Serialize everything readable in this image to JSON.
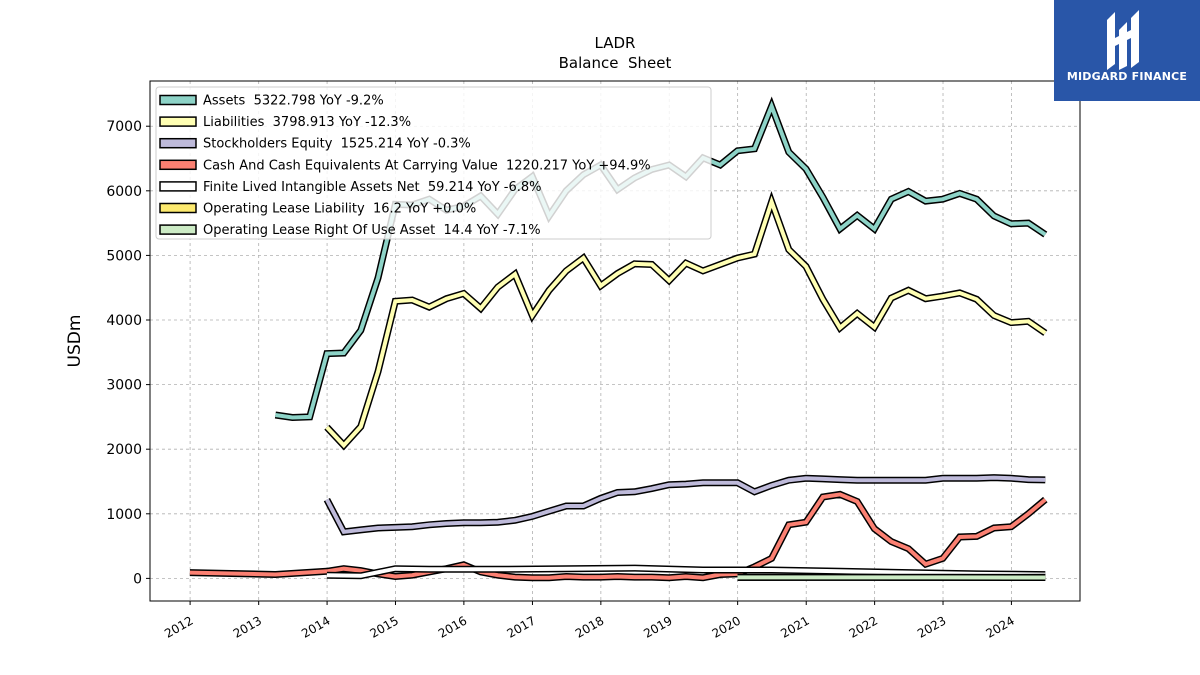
{
  "brand": {
    "name": "MIDGARD FINANCE",
    "color": "#2956a8",
    "icon": "midgard-logo-icon"
  },
  "chart_data": {
    "type": "line",
    "title": "LADR",
    "subtitle": "Balance  Sheet",
    "xlabel": "",
    "ylabel": "USDm",
    "xlim": [
      "2011-06",
      "2025-01"
    ],
    "ylim": [
      -350,
      7700
    ],
    "grid": true,
    "legend_position": "top-left",
    "x_ticks": [
      "2012",
      "2013",
      "2014",
      "2015",
      "2016",
      "2017",
      "2018",
      "2019",
      "2020",
      "2021",
      "2022",
      "2023",
      "2024"
    ],
    "y_ticks": [
      0,
      1000,
      2000,
      3000,
      4000,
      5000,
      6000,
      7000
    ],
    "series": [
      {
        "name": "Assets",
        "legend": "Assets  5322.798 YoY -9.2%",
        "color": "#8dd3c7",
        "points": [
          [
            "2013-03-31",
            2530
          ],
          [
            "2013-06-30",
            2490
          ],
          [
            "2013-09-30",
            2500
          ],
          [
            "2013-12-31",
            3480
          ],
          [
            "2014-03-31",
            3490
          ],
          [
            "2014-06-30",
            3840
          ],
          [
            "2014-09-30",
            4650
          ],
          [
            "2014-12-31",
            5790
          ],
          [
            "2015-03-31",
            5780
          ],
          [
            "2015-06-30",
            5870
          ],
          [
            "2015-09-30",
            5700
          ],
          [
            "2015-12-31",
            5760
          ],
          [
            "2016-03-31",
            5920
          ],
          [
            "2016-06-30",
            5640
          ],
          [
            "2016-09-30",
            6020
          ],
          [
            "2016-12-31",
            6220
          ],
          [
            "2017-03-31",
            5610
          ],
          [
            "2017-06-30",
            6000
          ],
          [
            "2017-09-30",
            6250
          ],
          [
            "2017-12-31",
            6400
          ],
          [
            "2018-03-31",
            6020
          ],
          [
            "2018-06-30",
            6200
          ],
          [
            "2018-09-30",
            6330
          ],
          [
            "2018-12-31",
            6400
          ],
          [
            "2019-03-31",
            6220
          ],
          [
            "2019-06-30",
            6510
          ],
          [
            "2019-09-30",
            6400
          ],
          [
            "2019-12-31",
            6620
          ],
          [
            "2020-03-31",
            6650
          ],
          [
            "2020-06-30",
            7310
          ],
          [
            "2020-09-30",
            6600
          ],
          [
            "2020-12-31",
            6340
          ],
          [
            "2021-03-31",
            5900
          ],
          [
            "2021-06-30",
            5410
          ],
          [
            "2021-09-30",
            5620
          ],
          [
            "2021-12-31",
            5410
          ],
          [
            "2022-03-31",
            5870
          ],
          [
            "2022-06-30",
            5990
          ],
          [
            "2022-09-30",
            5840
          ],
          [
            "2022-12-31",
            5870
          ],
          [
            "2023-03-31",
            5960
          ],
          [
            "2023-06-30",
            5870
          ],
          [
            "2023-09-30",
            5610
          ],
          [
            "2023-12-31",
            5490
          ],
          [
            "2024-03-31",
            5500
          ],
          [
            "2024-06-30",
            5323
          ]
        ]
      },
      {
        "name": "Liabilities",
        "legend": "Liabilities  3798.913 YoY -12.3%",
        "color": "#ffffb3",
        "points": [
          [
            "2013-12-31",
            2340
          ],
          [
            "2014-03-31",
            2060
          ],
          [
            "2014-06-30",
            2350
          ],
          [
            "2014-09-30",
            3200
          ],
          [
            "2014-12-31",
            4290
          ],
          [
            "2015-03-31",
            4310
          ],
          [
            "2015-06-30",
            4200
          ],
          [
            "2015-09-30",
            4330
          ],
          [
            "2015-12-31",
            4410
          ],
          [
            "2016-03-31",
            4180
          ],
          [
            "2016-06-30",
            4510
          ],
          [
            "2016-09-30",
            4710
          ],
          [
            "2016-12-31",
            4070
          ],
          [
            "2017-03-31",
            4460
          ],
          [
            "2017-06-30",
            4760
          ],
          [
            "2017-09-30",
            4960
          ],
          [
            "2017-12-31",
            4530
          ],
          [
            "2018-03-31",
            4720
          ],
          [
            "2018-06-30",
            4870
          ],
          [
            "2018-09-30",
            4860
          ],
          [
            "2018-12-31",
            4610
          ],
          [
            "2019-03-31",
            4880
          ],
          [
            "2019-06-30",
            4760
          ],
          [
            "2019-12-31",
            4960
          ],
          [
            "2020-03-31",
            5020
          ],
          [
            "2020-06-30",
            5830
          ],
          [
            "2020-09-30",
            5090
          ],
          [
            "2020-12-31",
            4830
          ],
          [
            "2021-03-31",
            4320
          ],
          [
            "2021-06-30",
            3880
          ],
          [
            "2021-09-30",
            4100
          ],
          [
            "2021-12-31",
            3890
          ],
          [
            "2022-03-31",
            4340
          ],
          [
            "2022-06-30",
            4460
          ],
          [
            "2022-09-30",
            4330
          ],
          [
            "2022-12-31",
            4370
          ],
          [
            "2023-03-31",
            4420
          ],
          [
            "2023-06-30",
            4320
          ],
          [
            "2023-09-30",
            4070
          ],
          [
            "2023-12-31",
            3960
          ],
          [
            "2024-03-31",
            3980
          ],
          [
            "2024-06-30",
            3799
          ]
        ]
      },
      {
        "name": "Stockholders Equity",
        "legend": "Stockholders Equity  1525.214 YoY -0.3%",
        "color": "#bebada",
        "points": [
          [
            "2013-12-31",
            1220
          ],
          [
            "2014-03-31",
            720
          ],
          [
            "2014-06-30",
            750
          ],
          [
            "2014-09-30",
            780
          ],
          [
            "2014-12-31",
            790
          ],
          [
            "2015-03-31",
            800
          ],
          [
            "2015-06-30",
            830
          ],
          [
            "2015-09-30",
            850
          ],
          [
            "2015-12-31",
            860
          ],
          [
            "2016-03-31",
            860
          ],
          [
            "2016-06-30",
            870
          ],
          [
            "2016-09-30",
            900
          ],
          [
            "2016-12-31",
            960
          ],
          [
            "2017-03-31",
            1040
          ],
          [
            "2017-06-30",
            1120
          ],
          [
            "2017-09-30",
            1120
          ],
          [
            "2017-12-31",
            1240
          ],
          [
            "2018-03-31",
            1330
          ],
          [
            "2018-06-30",
            1340
          ],
          [
            "2018-09-30",
            1390
          ],
          [
            "2018-12-31",
            1450
          ],
          [
            "2019-03-31",
            1460
          ],
          [
            "2019-06-30",
            1480
          ],
          [
            "2019-12-31",
            1480
          ],
          [
            "2020-03-31",
            1340
          ],
          [
            "2020-06-30",
            1440
          ],
          [
            "2020-09-30",
            1520
          ],
          [
            "2020-12-31",
            1550
          ],
          [
            "2021-03-31",
            1540
          ],
          [
            "2021-06-30",
            1530
          ],
          [
            "2021-09-30",
            1520
          ],
          [
            "2021-12-31",
            1520
          ],
          [
            "2022-03-31",
            1520
          ],
          [
            "2022-06-30",
            1520
          ],
          [
            "2022-09-30",
            1520
          ],
          [
            "2022-12-31",
            1550
          ],
          [
            "2023-03-31",
            1550
          ],
          [
            "2023-06-30",
            1550
          ],
          [
            "2023-09-30",
            1560
          ],
          [
            "2023-12-31",
            1550
          ],
          [
            "2024-03-31",
            1530
          ],
          [
            "2024-06-30",
            1525
          ]
        ]
      },
      {
        "name": "Cash And Cash Equivalents At Carrying Value",
        "legend": "Cash And Cash Equivalents At Carrying Value  1220.217 YoY +94.9%",
        "color": "#fb8072",
        "points": [
          [
            "2011-12-31",
            90
          ],
          [
            "2013-03-31",
            60
          ],
          [
            "2013-12-31",
            110
          ],
          [
            "2014-03-31",
            150
          ],
          [
            "2014-06-30",
            120
          ],
          [
            "2014-09-30",
            70
          ],
          [
            "2014-12-31",
            30
          ],
          [
            "2015-03-31",
            50
          ],
          [
            "2015-06-30",
            100
          ],
          [
            "2015-09-30",
            150
          ],
          [
            "2015-12-31",
            210
          ],
          [
            "2016-03-31",
            100
          ],
          [
            "2016-06-30",
            50
          ],
          [
            "2016-09-30",
            20
          ],
          [
            "2016-12-31",
            10
          ],
          [
            "2017-03-31",
            10
          ],
          [
            "2017-06-30",
            30
          ],
          [
            "2017-09-30",
            20
          ],
          [
            "2017-12-31",
            20
          ],
          [
            "2018-03-31",
            30
          ],
          [
            "2018-06-30",
            20
          ],
          [
            "2018-09-30",
            20
          ],
          [
            "2018-12-31",
            10
          ],
          [
            "2019-03-31",
            30
          ],
          [
            "2019-06-30",
            10
          ],
          [
            "2019-09-30",
            60
          ],
          [
            "2019-12-31",
            70
          ],
          [
            "2020-03-31",
            180
          ],
          [
            "2020-06-30",
            310
          ],
          [
            "2020-09-30",
            830
          ],
          [
            "2020-12-31",
            870
          ],
          [
            "2021-03-31",
            1260
          ],
          [
            "2021-06-30",
            1300
          ],
          [
            "2021-09-30",
            1190
          ],
          [
            "2021-12-31",
            770
          ],
          [
            "2022-03-31",
            570
          ],
          [
            "2022-06-30",
            460
          ],
          [
            "2022-09-30",
            220
          ],
          [
            "2022-12-31",
            310
          ],
          [
            "2023-03-31",
            640
          ],
          [
            "2023-06-30",
            650
          ],
          [
            "2023-09-30",
            780
          ],
          [
            "2023-12-31",
            800
          ],
          [
            "2024-03-31",
            1000
          ],
          [
            "2024-06-30",
            1220
          ]
        ]
      },
      {
        "name": "Finite Lived Intangible Assets Net",
        "legend": "Finite Lived Intangible Assets Net  59.214 YoY -6.8%",
        "color": "#ffffff",
        "points": [
          [
            "2013-12-31",
            50
          ],
          [
            "2014-06-30",
            40
          ],
          [
            "2014-12-31",
            150
          ],
          [
            "2015-06-30",
            140
          ],
          [
            "2016-06-30",
            140
          ],
          [
            "2017-06-30",
            150
          ],
          [
            "2018-06-30",
            160
          ],
          [
            "2019-06-30",
            130
          ],
          [
            "2020-06-30",
            130
          ],
          [
            "2021-06-30",
            110
          ],
          [
            "2022-06-30",
            90
          ],
          [
            "2023-06-30",
            70
          ],
          [
            "2024-06-30",
            59
          ]
        ]
      },
      {
        "name": "Operating Lease Liability",
        "legend": "Operating Lease Liability  16.2 YoY +0.0%",
        "color": "#fdea6f",
        "points": [
          [
            "2019-12-31",
            16
          ],
          [
            "2020-12-31",
            17
          ],
          [
            "2021-12-31",
            17
          ],
          [
            "2022-12-31",
            16
          ],
          [
            "2023-12-31",
            16
          ],
          [
            "2024-06-30",
            16.2
          ]
        ]
      },
      {
        "name": "Operating Lease Right Of Use Asset",
        "legend": "Operating Lease Right Of Use Asset  14.4 YoY -7.1%",
        "color": "#ccebc5",
        "points": [
          [
            "2019-12-31",
            15
          ],
          [
            "2020-12-31",
            15
          ],
          [
            "2021-12-31",
            15
          ],
          [
            "2022-12-31",
            15
          ],
          [
            "2023-12-31",
            14
          ],
          [
            "2024-06-30",
            14.4
          ]
        ]
      }
    ]
  }
}
